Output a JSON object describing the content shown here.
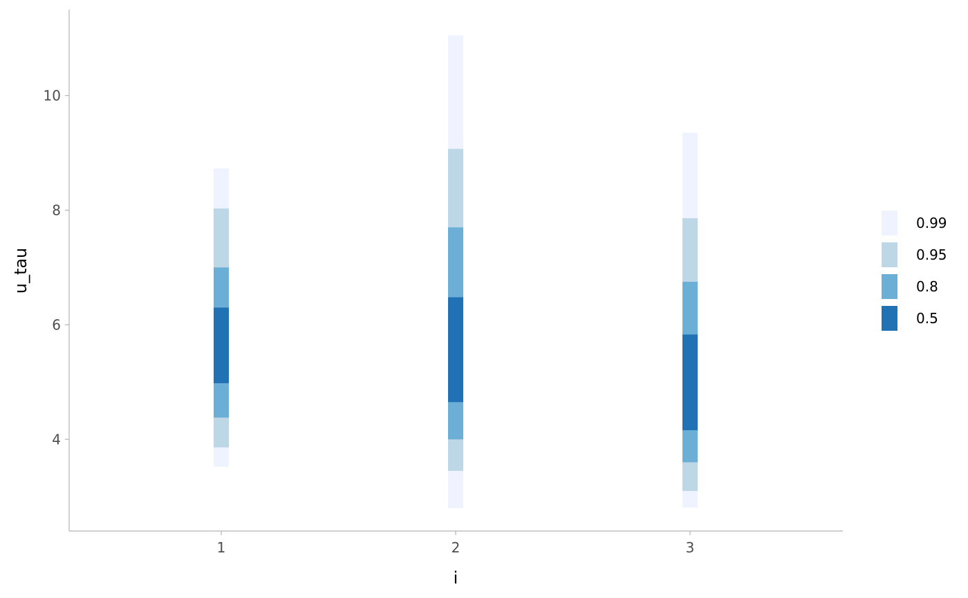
{
  "chart_data": {
    "type": "interval",
    "xlabel": "i",
    "ylabel": "u_tau",
    "x_ticks": [
      "1",
      "2",
      "3"
    ],
    "y_ticks": [
      4,
      6,
      8,
      10
    ],
    "ylim": [
      2.4,
      11.5
    ],
    "grid": false,
    "legend_position": "right",
    "legend": [
      {
        "level": "0.99",
        "color": "#eff3ff"
      },
      {
        "level": "0.95",
        "color": "#bdd7e7"
      },
      {
        "level": "0.8",
        "color": "#6baed6"
      },
      {
        "level": "0.5",
        "color": "#2171b5"
      }
    ],
    "series": [
      {
        "x": "1",
        "intervals": {
          "0.99": [
            3.52,
            8.73
          ],
          "0.95": [
            3.86,
            8.03
          ],
          "0.8": [
            4.38,
            7.0
          ],
          "0.5": [
            4.98,
            6.3
          ]
        }
      },
      {
        "x": "2",
        "intervals": {
          "0.99": [
            2.8,
            11.05
          ],
          "0.95": [
            3.45,
            9.07
          ],
          "0.8": [
            4.0,
            7.7
          ],
          "0.5": [
            4.65,
            6.48
          ]
        }
      },
      {
        "x": "3",
        "intervals": {
          "0.99": [
            2.81,
            9.35
          ],
          "0.95": [
            3.1,
            7.86
          ],
          "0.8": [
            3.6,
            6.75
          ],
          "0.5": [
            4.16,
            5.83
          ]
        }
      }
    ]
  }
}
